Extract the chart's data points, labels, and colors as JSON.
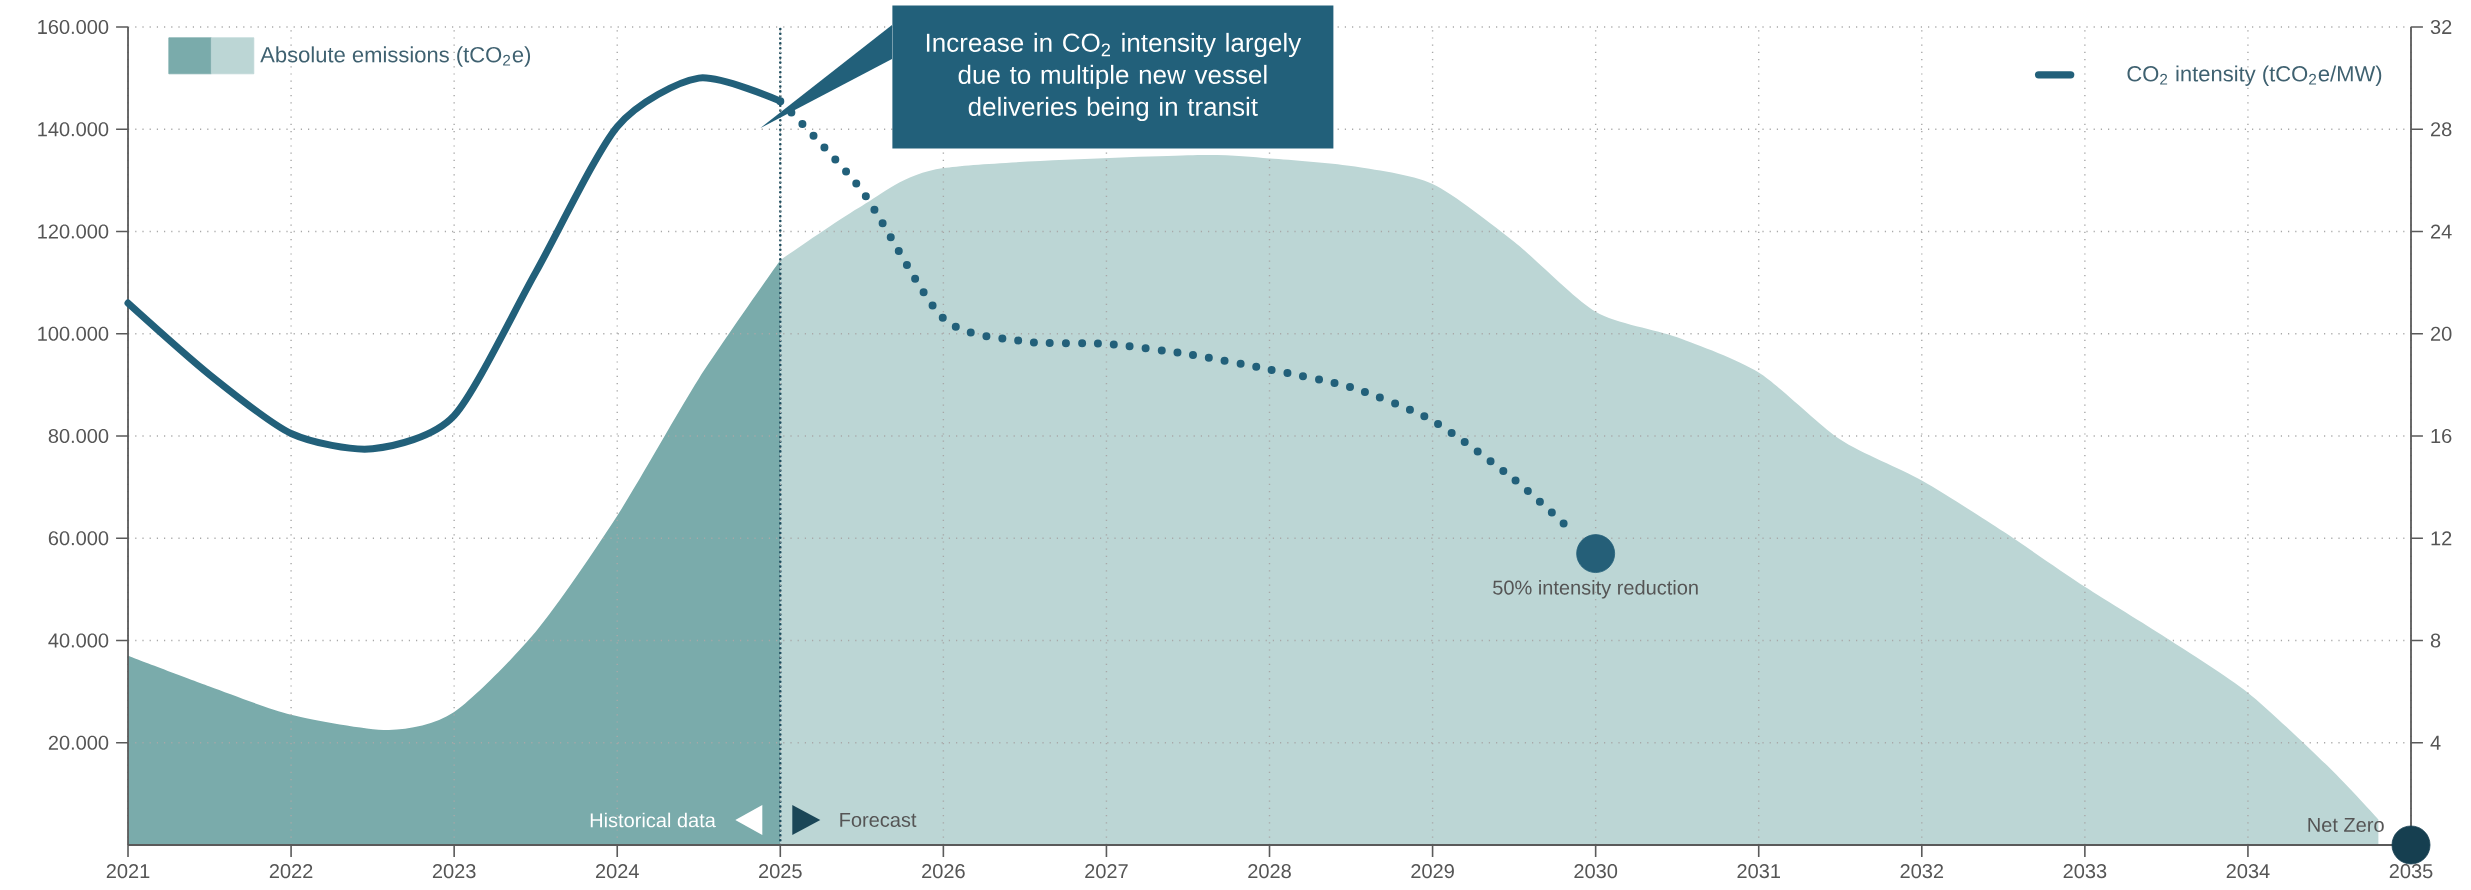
{
  "chart_data": {
    "type": "area",
    "xlim": [
      2021,
      2035
    ],
    "xticks": [
      2021,
      2022,
      2023,
      2024,
      2025,
      2026,
      2027,
      2028,
      2029,
      2030,
      2031,
      2032,
      2033,
      2034,
      2035
    ],
    "ylim": [
      0,
      160000
    ],
    "yticks": [
      {
        "value": 20000,
        "label": "20.000"
      },
      {
        "value": 40000,
        "label": "40.000"
      },
      {
        "value": 60000,
        "label": "60.000"
      },
      {
        "value": 80000,
        "label": "80.000"
      },
      {
        "value": 100000,
        "label": "100.000"
      },
      {
        "value": 120000,
        "label": "120.000"
      },
      {
        "value": 140000,
        "label": "140.000"
      },
      {
        "value": 160000,
        "label": "160.000"
      }
    ],
    "y2lim": [
      0,
      32
    ],
    "y2ticks": [
      4,
      8,
      12,
      16,
      20,
      24,
      28,
      32
    ],
    "grid": true,
    "legend": "top",
    "series": [
      {
        "name": "Absolute emissions (tCO$_{2}$e)",
        "color": "#7aabab",
        "x": [
          2021,
          2021.5,
          2022,
          2022.6,
          2023,
          2023.5,
          2024,
          2024.5,
          2025
        ],
        "values": [
          37000,
          31000,
          25500,
          22500,
          26000,
          41700,
          64400,
          91200,
          114400
        ]
      },
      {
        "color": "#bcd6d5",
        "x": [
          2025,
          2025.5,
          2026,
          2026.5,
          2027,
          2027.5,
          2028,
          2028.5,
          2029,
          2029.5,
          2030,
          2030.5,
          2031,
          2031.5,
          2032,
          2032.5,
          2033,
          2033.5,
          2034,
          2034.5,
          2034.8
        ],
        "values": [
          114400,
          125000,
          132400,
          null,
          null,
          134900,
          134300,
          132800,
          129300,
          118000,
          104300,
          99300,
          92400,
          79300,
          71300,
          61300,
          50500,
          40500,
          29800,
          15100,
          5000
        ]
      },
      {
        "name": "CO$_{2}$ intensity (tCO$_{2}$e/MW)",
        "type": "line",
        "axis": "y2",
        "color": "#22607a",
        "line_style": "solid",
        "x": [
          2021,
          2021.5,
          2022,
          2022.5,
          2023,
          2023.5,
          2024,
          2024.5,
          2025
        ],
        "values": [
          21.2,
          18.4,
          16.1,
          15.5,
          16.8,
          22.4,
          28.1,
          30.0,
          29.1
        ]
      },
      {
        "type": "line",
        "axis": "y2",
        "color": "#22607a",
        "line_style": "dotted",
        "x": [
          2025,
          2025.5,
          2026,
          2026.5,
          2027,
          2027.5,
          2028,
          2028.5,
          2029,
          2029.5,
          2029.85
        ],
        "values": [
          29.1,
          25.6,
          20.6,
          19.7,
          19.6,
          19.2,
          18.6,
          17.9,
          16.6,
          14.3,
          12.3
        ]
      },
      {
        "type": "scatter",
        "axis": "y2",
        "marker": "circle",
        "x": [
          2030,
          2035
        ],
        "values": [
          11.4,
          0
        ],
        "colors": [
          "#255f78",
          "#163f50"
        ]
      }
    ],
    "ref_lines": [
      {
        "axis": "x",
        "value": 2025,
        "color": "#1f4e5f",
        "line_style": "dotted"
      }
    ],
    "annotations": [
      "Increase in CO$_{2}$ intensity largely due to multiple new vessel deliveries being in transit",
      "50% intensity reduction",
      {
        "text": "Net Zero",
        "x": 2035,
        "y": 0
      },
      "Historical data",
      "Forecast"
    ]
  }
}
